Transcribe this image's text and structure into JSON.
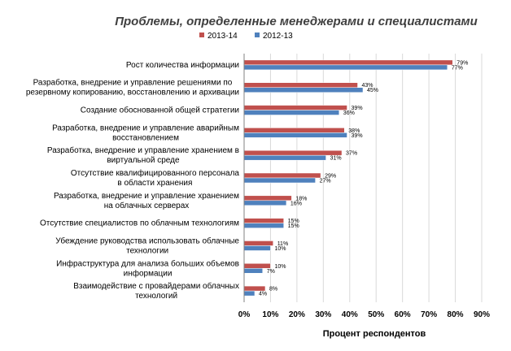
{
  "chart_data": {
    "type": "bar",
    "orientation": "horizontal",
    "title": "Проблемы, определенные менеджерами и специалистами",
    "xlabel": "Процент респондентов",
    "ylabel": "",
    "xlim": [
      0,
      90
    ],
    "xticks": [
      "0%",
      "10%",
      "20%",
      "30%",
      "40%",
      "50%",
      "60%",
      "70%",
      "80%",
      "90%"
    ],
    "legend_position": "top-right",
    "categories": [
      [
        "Рост количества информации"
      ],
      [
        "Разработка, внедрение и управление решениями по",
        "резервному копированию, восстановлению и архивации"
      ],
      [
        "Создание обоснованной общей стратегии"
      ],
      [
        "Разработка, внедрение и управление аварийным",
        "восстановлением"
      ],
      [
        "Разработка, внедрение и управление хранением в",
        "виртуальной среде"
      ],
      [
        "Отсутствие квалифицированного персонала",
        "в области хранения"
      ],
      [
        "Разработка, внедрение и управление хранением",
        "на облачных серверах"
      ],
      [
        "Отсутствие специалистов по облачным технологиям"
      ],
      [
        "Убеждение руководства использовать облачные",
        "технологии"
      ],
      [
        "Инфраструктура для анализа больших объемов",
        "информации"
      ],
      [
        "Взаимодействие с провайдерами облачных",
        "технологий"
      ]
    ],
    "series": [
      {
        "name": "2013-14",
        "color": "#c0504d",
        "values": [
          79,
          43,
          39,
          38,
          37,
          29,
          18,
          15,
          11,
          10,
          8
        ],
        "labels": [
          "79%",
          "43%",
          "39%",
          "38%",
          "37%",
          "29%",
          "18%",
          "15%",
          "11%",
          "10%",
          "8%"
        ]
      },
      {
        "name": "2012-13",
        "color": "#4f81bd",
        "values": [
          77,
          45,
          36,
          39,
          31,
          27,
          16,
          15,
          10,
          7,
          4
        ],
        "labels": [
          "77%",
          "45%",
          "36%",
          "39%",
          "31%",
          "27%",
          "16%",
          "15%",
          "10%",
          "7%",
          "4%"
        ]
      }
    ]
  }
}
